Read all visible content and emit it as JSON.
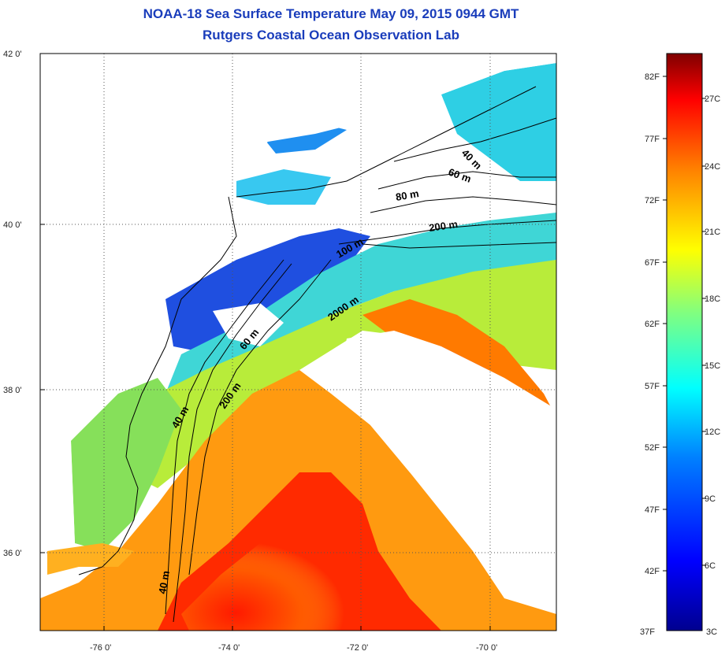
{
  "title_line1": "NOAA-18 Sea Surface Temperature May 09, 2015 0944 GMT",
  "title_line2": "Rutgers Coastal Ocean Observation Lab",
  "map": {
    "lat_labels": [
      "42 0'",
      "40 0'",
      "38 0'",
      "36 0'"
    ],
    "lon_labels": [
      "-76 0'",
      "-74 0'",
      "-72 0'",
      "-70 0'"
    ],
    "lat_range": [
      35.0,
      42.0
    ],
    "lon_range": [
      -77.0,
      -69.0
    ],
    "grid": "dotted",
    "contour_labels": [
      "40 m",
      "60 m",
      "80 m",
      "200 m",
      "100 m",
      "2000 m",
      "60 m",
      "200 m",
      "40 m",
      "40 m"
    ]
  },
  "colorbar": {
    "f_labels": [
      "82F",
      "77F",
      "72F",
      "67F",
      "62F",
      "57F",
      "52F",
      "47F",
      "42F",
      "37F"
    ],
    "c_labels": [
      "27C",
      "24C",
      "21C",
      "18C",
      "15C",
      "12C",
      "9C",
      "6C",
      "3C"
    ],
    "colors": [
      "#7f0000",
      "#ff0000",
      "#ff8000",
      "#ffff00",
      "#80ff80",
      "#00ffff",
      "#0080ff",
      "#0000ff",
      "#00008f"
    ]
  }
}
